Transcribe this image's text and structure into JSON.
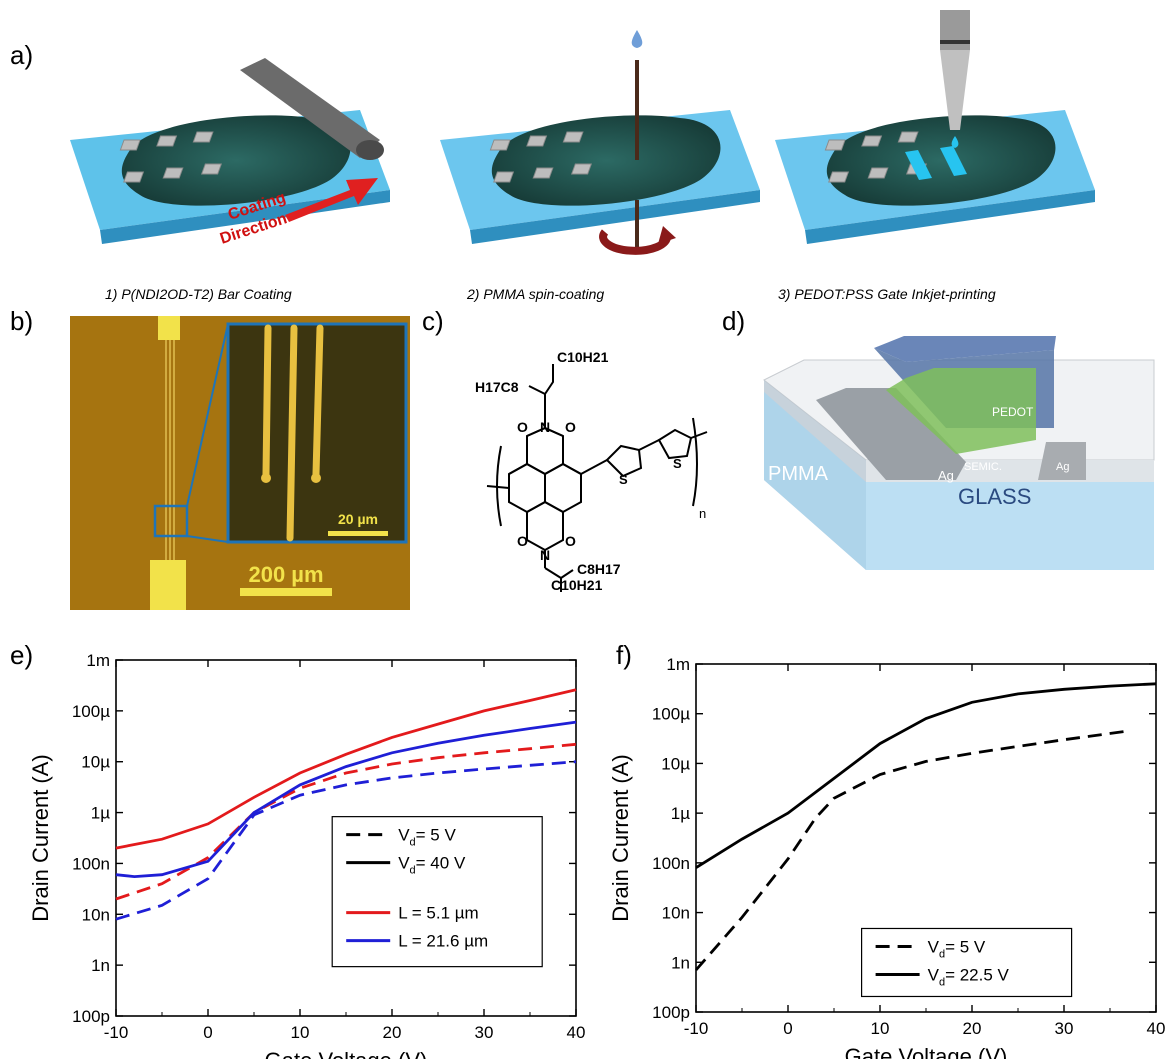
{
  "panels": {
    "a": "a)",
    "b": "b)",
    "c": "c)",
    "d": "d)",
    "e": "e)",
    "f": "f)"
  },
  "panel_a": {
    "captions": [
      "1) P(NDI2OD-T2) Bar Coating",
      "2) PMMA spin-coating",
      "3) PEDOT:PSS Gate Inkjet-printing"
    ],
    "arrow_text_1": "Coating",
    "arrow_text_2": "Direction",
    "colors": {
      "substrate": "#4bb6e0",
      "film": "#1f4a46",
      "electrode": "#bdbdbd",
      "arrow": "#e02020"
    }
  },
  "panel_b": {
    "scale_large": "200 µm",
    "scale_small": "20 µm"
  },
  "panel_c": {
    "labels": {
      "c10h21_top": "C10H21",
      "h17c8_top": "H17C8",
      "c8h17_bot": "C8H17",
      "c10h21_bot": "C10H21",
      "o": "O",
      "n": "N",
      "s": "S",
      "sub_n": "n"
    }
  },
  "panel_d": {
    "labels": {
      "pedot": "PEDOT",
      "semic": "SEMIC.",
      "ag_left": "Ag",
      "ag_right": "Ag",
      "pmma": "PMMA",
      "glass": "GLASS"
    }
  },
  "chart_data": [
    {
      "type": "line",
      "panel": "e",
      "xlabel": "Gate Voltage (V)",
      "ylabel": "Drain Current (A)",
      "xlim": [
        -10,
        40
      ],
      "ylim": [
        1e-10,
        0.001
      ],
      "yscale": "log",
      "xticks": [
        -10,
        0,
        10,
        20,
        30,
        40
      ],
      "yticks": [
        {
          "v": 1e-10,
          "label": "100p"
        },
        {
          "v": 1e-09,
          "label": "1n"
        },
        {
          "v": 1e-08,
          "label": "10n"
        },
        {
          "v": 1e-07,
          "label": "100n"
        },
        {
          "v": 1e-06,
          "label": "1µ"
        },
        {
          "v": 1e-05,
          "label": "10µ"
        },
        {
          "v": 0.0001,
          "label": "100µ"
        },
        {
          "v": 0.001,
          "label": "1m"
        }
      ],
      "legend": {
        "style_entries": [
          {
            "pre": "V",
            "sub": "d",
            "post": "= 5 V",
            "dash": true
          },
          {
            "pre": "V",
            "sub": "d",
            "post": "= 40 V",
            "dash": false
          }
        ],
        "color_entries": [
          {
            "label": "L = 5.1 µm",
            "color": "#e31a1c"
          },
          {
            "label": "L = 21.6 µm",
            "color": "#1f1fd6"
          }
        ],
        "placement": "center-right"
      },
      "series": [
        {
          "color": "#e31a1c",
          "dash": false,
          "x": [
            -10,
            -5,
            0,
            5,
            10,
            15,
            20,
            25,
            30,
            35,
            40
          ],
          "y": [
            2e-07,
            3e-07,
            6e-07,
            2e-06,
            6e-06,
            1.4e-05,
            3e-05,
            5.5e-05,
            0.0001,
            0.00016,
            0.00026
          ]
        },
        {
          "color": "#e31a1c",
          "dash": true,
          "x": [
            -10,
            -5,
            0,
            5,
            10,
            15,
            20,
            25,
            30,
            35,
            40
          ],
          "y": [
            2e-08,
            4e-08,
            1.3e-07,
            1e-06,
            3e-06,
            6e-06,
            9e-06,
            1.2e-05,
            1.5e-05,
            1.8e-05,
            2.2e-05
          ]
        },
        {
          "color": "#1f1fd6",
          "dash": false,
          "x": [
            -10,
            -8,
            -5,
            0,
            5,
            10,
            15,
            20,
            25,
            30,
            35,
            40
          ],
          "y": [
            6e-08,
            5.5e-08,
            6e-08,
            1.1e-07,
            1e-06,
            3.5e-06,
            8e-06,
            1.5e-05,
            2.3e-05,
            3.3e-05,
            4.5e-05,
            6e-05
          ]
        },
        {
          "color": "#1f1fd6",
          "dash": true,
          "x": [
            -10,
            -5,
            0,
            5,
            10,
            15,
            20,
            25,
            30,
            35,
            40
          ],
          "y": [
            8e-09,
            1.5e-08,
            5e-08,
            9e-07,
            2.2e-06,
            3.5e-06,
            4.8e-06,
            6e-06,
            7.2e-06,
            8.5e-06,
            1e-05
          ]
        }
      ]
    },
    {
      "type": "line",
      "panel": "f",
      "xlabel": "Gate Voltage (V)",
      "ylabel": "Drain Current (A)",
      "xlim": [
        -10,
        40
      ],
      "ylim": [
        1e-10,
        0.001
      ],
      "yscale": "log",
      "xticks": [
        -10,
        0,
        10,
        20,
        30,
        40
      ],
      "yticks": [
        {
          "v": 1e-10,
          "label": "100p"
        },
        {
          "v": 1e-09,
          "label": "1n"
        },
        {
          "v": 1e-08,
          "label": "10n"
        },
        {
          "v": 1e-07,
          "label": "100n"
        },
        {
          "v": 1e-06,
          "label": "1µ"
        },
        {
          "v": 1e-05,
          "label": "10µ"
        },
        {
          "v": 0.0001,
          "label": "100µ"
        },
        {
          "v": 0.001,
          "label": "1m"
        }
      ],
      "legend": {
        "style_entries": [
          {
            "pre": "V",
            "sub": "d",
            "post": "= 5 V",
            "dash": true
          },
          {
            "pre": "V",
            "sub": "d",
            "post": "= 22.5 V",
            "dash": false
          }
        ],
        "placement": "bottom-right"
      },
      "series": [
        {
          "color": "#000000",
          "dash": false,
          "x": [
            -10,
            -5,
            0,
            5,
            10,
            15,
            20,
            25,
            30,
            35,
            40
          ],
          "y": [
            8e-08,
            3e-07,
            1e-06,
            5e-06,
            2.5e-05,
            8e-05,
            0.00017,
            0.00025,
            0.00031,
            0.00036,
            0.0004
          ]
        },
        {
          "color": "#000000",
          "dash": true,
          "x": [
            -10,
            -5,
            0,
            3,
            5,
            10,
            15,
            20,
            25,
            30,
            37
          ],
          "y": [
            7e-10,
            8e-09,
            1.2e-07,
            8e-07,
            2e-06,
            6e-06,
            1.1e-05,
            1.6e-05,
            2.2e-05,
            3e-05,
            4.5e-05
          ]
        }
      ]
    }
  ]
}
